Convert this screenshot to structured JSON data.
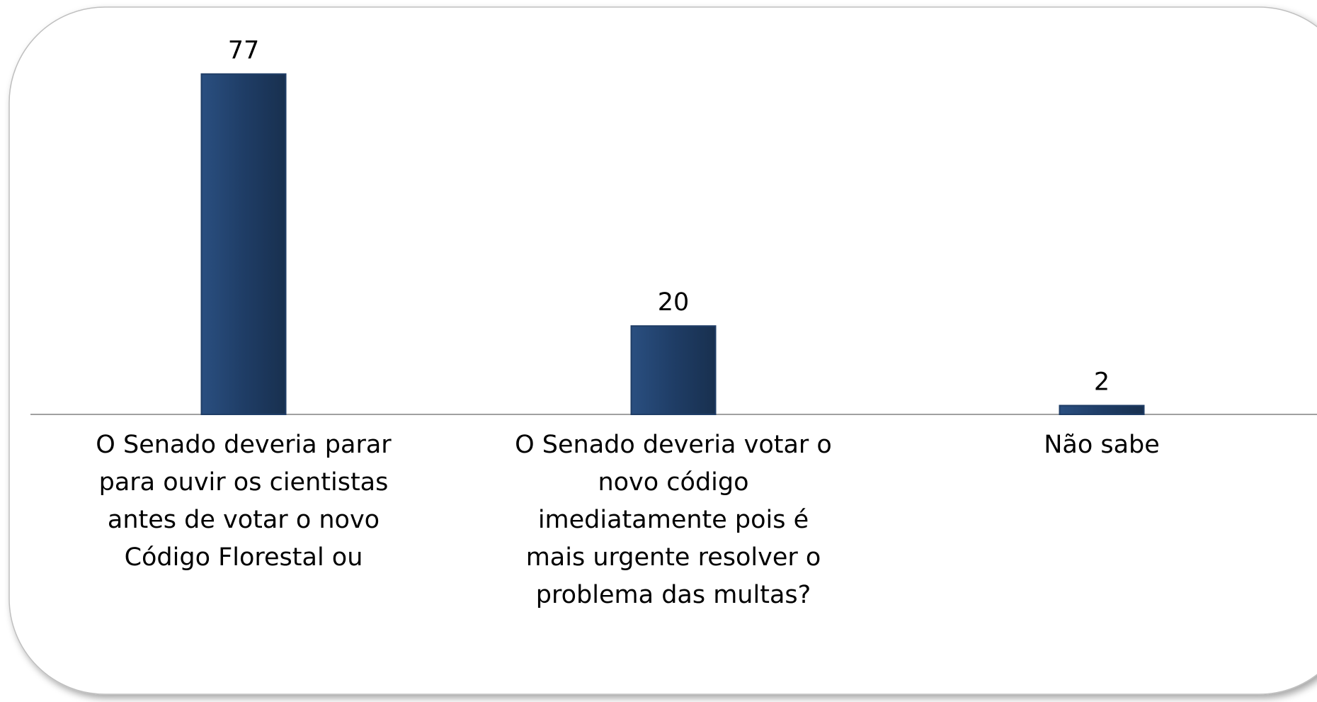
{
  "chart_data": {
    "type": "bar",
    "categories": [
      "O Senado deveria parar para ouvir os cientistas antes de votar o novo Código Florestal ou",
      "O Senado deveria votar o novo código imediatamente pois é mais urgente resolver o problema das multas?",
      "Não sabe"
    ],
    "values": [
      77,
      20,
      2
    ],
    "color": "#1f3d66"
  }
}
